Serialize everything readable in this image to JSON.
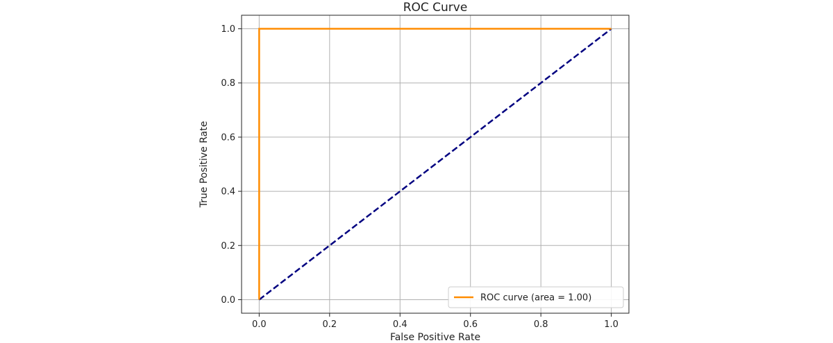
{
  "chart_data": {
    "type": "line",
    "title": "ROC Curve",
    "xlabel": "False Positive Rate",
    "ylabel": "True Positive Rate",
    "xlim": [
      -0.05,
      1.05
    ],
    "ylim": [
      -0.05,
      1.05
    ],
    "xticks": [
      0.0,
      0.2,
      0.4,
      0.6,
      0.8,
      1.0
    ],
    "yticks": [
      0.0,
      0.2,
      0.4,
      0.6,
      0.8,
      1.0
    ],
    "xtick_labels": [
      "0.0",
      "0.2",
      "0.4",
      "0.6",
      "0.8",
      "1.0"
    ],
    "ytick_labels": [
      "0.0",
      "0.2",
      "0.4",
      "0.6",
      "0.8",
      "1.0"
    ],
    "grid": true,
    "legend_position": "lower-right",
    "series": [
      {
        "name": "ROC curve (area = 1.00)",
        "color": "#ff8c00",
        "style": "solid",
        "x": [
          0.0,
          0.0,
          1.0
        ],
        "y": [
          0.0,
          1.0,
          1.0
        ]
      },
      {
        "color": "#000080",
        "style": "dashed",
        "x": [
          0.0,
          1.0
        ],
        "y": [
          0.0,
          1.0
        ]
      }
    ]
  }
}
